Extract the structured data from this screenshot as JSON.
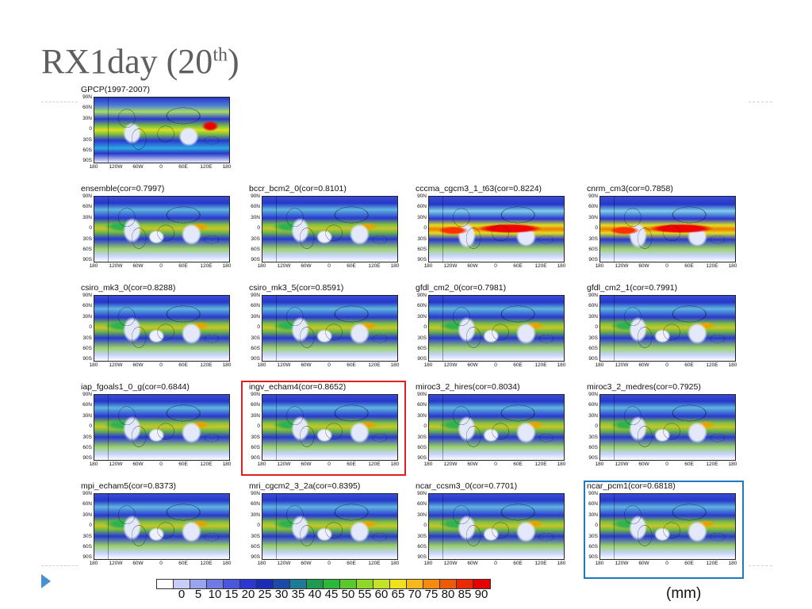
{
  "slide": {
    "title_main": "RX1day (20",
    "title_sup": "th",
    "title_end": ")"
  },
  "map_axes": {
    "lat_ticks": [
      "90N",
      "60N",
      "30N",
      "0",
      "30S",
      "60S",
      "90S"
    ],
    "lon_ticks": [
      "180",
      "120W",
      "60W",
      "0",
      "60E",
      "120E",
      "180"
    ]
  },
  "panels": [
    {
      "title": "GPCP(1997-2007)",
      "cor": null,
      "style": "gpcp"
    },
    {
      "title": "ensemble(cor=0.7997)",
      "cor": 0.7997,
      "style": "normal"
    },
    {
      "title": "bccr_bcm2_0(cor=0.8101)",
      "cor": 0.8101,
      "style": "normal"
    },
    {
      "title": "cccma_cgcm3_1_t63(cor=0.8224)",
      "cor": 0.8224,
      "style": "hot"
    },
    {
      "title": "cnrm_cm3(cor=0.7858)",
      "cor": 0.7858,
      "style": "hot"
    },
    {
      "title": "csiro_mk3_0(cor=0.8288)",
      "cor": 0.8288,
      "style": "normal"
    },
    {
      "title": "csiro_mk3_5(cor=0.8591)",
      "cor": 0.8591,
      "style": "normal"
    },
    {
      "title": "gfdl_cm2_0(cor=0.7981)",
      "cor": 0.7981,
      "style": "normal"
    },
    {
      "title": "gfdl_cm2_1(cor=0.7991)",
      "cor": 0.7991,
      "style": "normal"
    },
    {
      "title": "iap_fgoals1_0_g(cor=0.6844)",
      "cor": 0.6844,
      "style": "normal"
    },
    {
      "title": "ingv_echam4(cor=0.8652)",
      "cor": 0.8652,
      "style": "normal"
    },
    {
      "title": "miroc3_2_hires(cor=0.8034)",
      "cor": 0.8034,
      "style": "normal"
    },
    {
      "title": "miroc3_2_medres(cor=0.7925)",
      "cor": 0.7925,
      "style": "normal"
    },
    {
      "title": "mpi_echam5(cor=0.8373)",
      "cor": 0.8373,
      "style": "normal"
    },
    {
      "title": "mri_cgcm2_3_2a(cor=0.8395)",
      "cor": 0.8395,
      "style": "normal"
    },
    {
      "title": "ncar_ccsm3_0(cor=0.7701)",
      "cor": 0.7701,
      "style": "normal"
    },
    {
      "title": "ncar_pcm1(cor=0.6818)",
      "cor": 0.6818,
      "style": "normal"
    }
  ],
  "highlights": [
    {
      "panel": "ingv_echam4",
      "color": "#e02020"
    },
    {
      "panel": "ncar_pcm1",
      "color": "#2279c0"
    }
  ],
  "colorbar": {
    "labels": [
      "0",
      "5",
      "10",
      "15",
      "20",
      "25",
      "30",
      "35",
      "40",
      "45",
      "50",
      "55",
      "60",
      "65",
      "70",
      "75",
      "80",
      "85",
      "90"
    ],
    "colors": [
      "#ffffff",
      "#c8cdf8",
      "#9aa3f0",
      "#6f7ae6",
      "#4a56dc",
      "#2a38d0",
      "#1a2bb8",
      "#1c4aa8",
      "#1f7a9a",
      "#1f9a50",
      "#2cb63a",
      "#5ac82c",
      "#8fd82a",
      "#c4e226",
      "#f0e020",
      "#f6b81a",
      "#f48a10",
      "#ef5a08",
      "#ea2a04",
      "#e60000"
    ],
    "unit": "(mm)"
  }
}
